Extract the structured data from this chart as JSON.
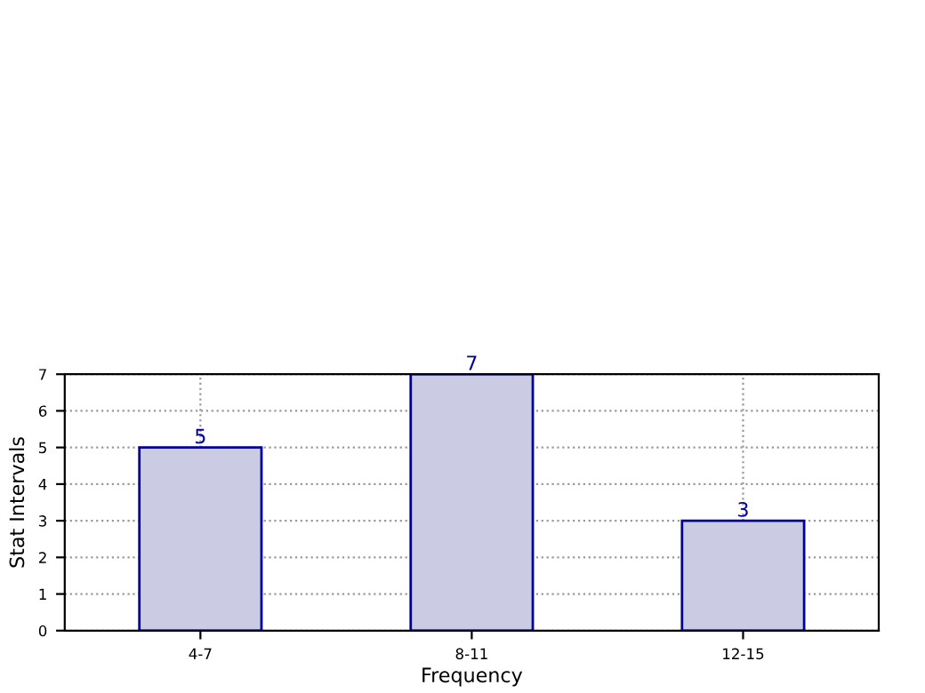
{
  "chart_data": {
    "type": "bar",
    "xlabel": "Frequency",
    "ylabel": "Stat Intervals",
    "categories": [
      "4-7",
      "8-11",
      "12-15"
    ],
    "values": [
      5,
      7,
      3
    ],
    "color": "#cbcbe3",
    "ylim": [
      0,
      7
    ],
    "yticks": [
      0,
      1,
      2,
      3,
      4,
      5,
      6,
      7
    ],
    "grid": true,
    "data_labels": true
  }
}
